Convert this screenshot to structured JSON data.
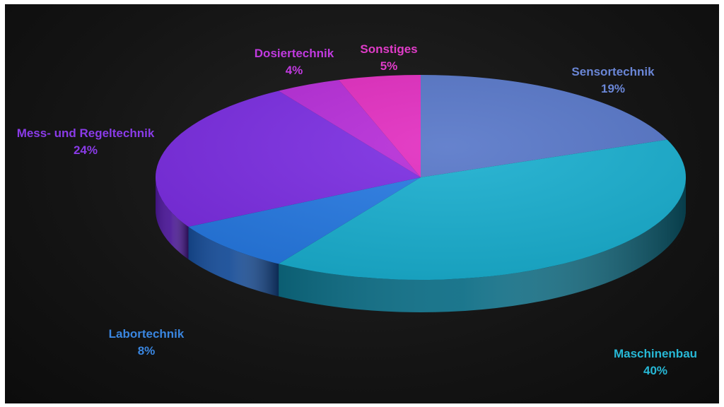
{
  "chart_data": {
    "type": "pie",
    "title": "",
    "legend": "none",
    "slices": [
      {
        "label": "Sensortechnik",
        "value": 19,
        "value_label": "19%",
        "color": "#5575C8",
        "side_color": "#2E4677",
        "label_color": "#6A86D6"
      },
      {
        "label": "Maschinenbau",
        "value": 40,
        "value_label": "40%",
        "color": "#17AECF",
        "side_color": "#0D6E86",
        "label_color": "#27B8D6"
      },
      {
        "label": "Labortechnik",
        "value": 8,
        "value_label": "8%",
        "color": "#2478E2",
        "side_color": "#164C97",
        "label_color": "#3A86E0"
      },
      {
        "label": "Mess- und Regeltechnik",
        "value": 24,
        "value_label": "24%",
        "color": "#7A2BE2",
        "side_color": "#4A1796",
        "label_color": "#8A3BE8"
      },
      {
        "label": "Dosiertechnik",
        "value": 4,
        "value_label": "4%",
        "color": "#B62AD8",
        "side_color": "#721A8A",
        "label_color": "#C03ADF"
      },
      {
        "label": "Sonstiges",
        "value": 5,
        "value_label": "5%",
        "color": "#E22BC0",
        "side_color": "#8E1A78",
        "label_color": "#E03CC8"
      }
    ]
  }
}
